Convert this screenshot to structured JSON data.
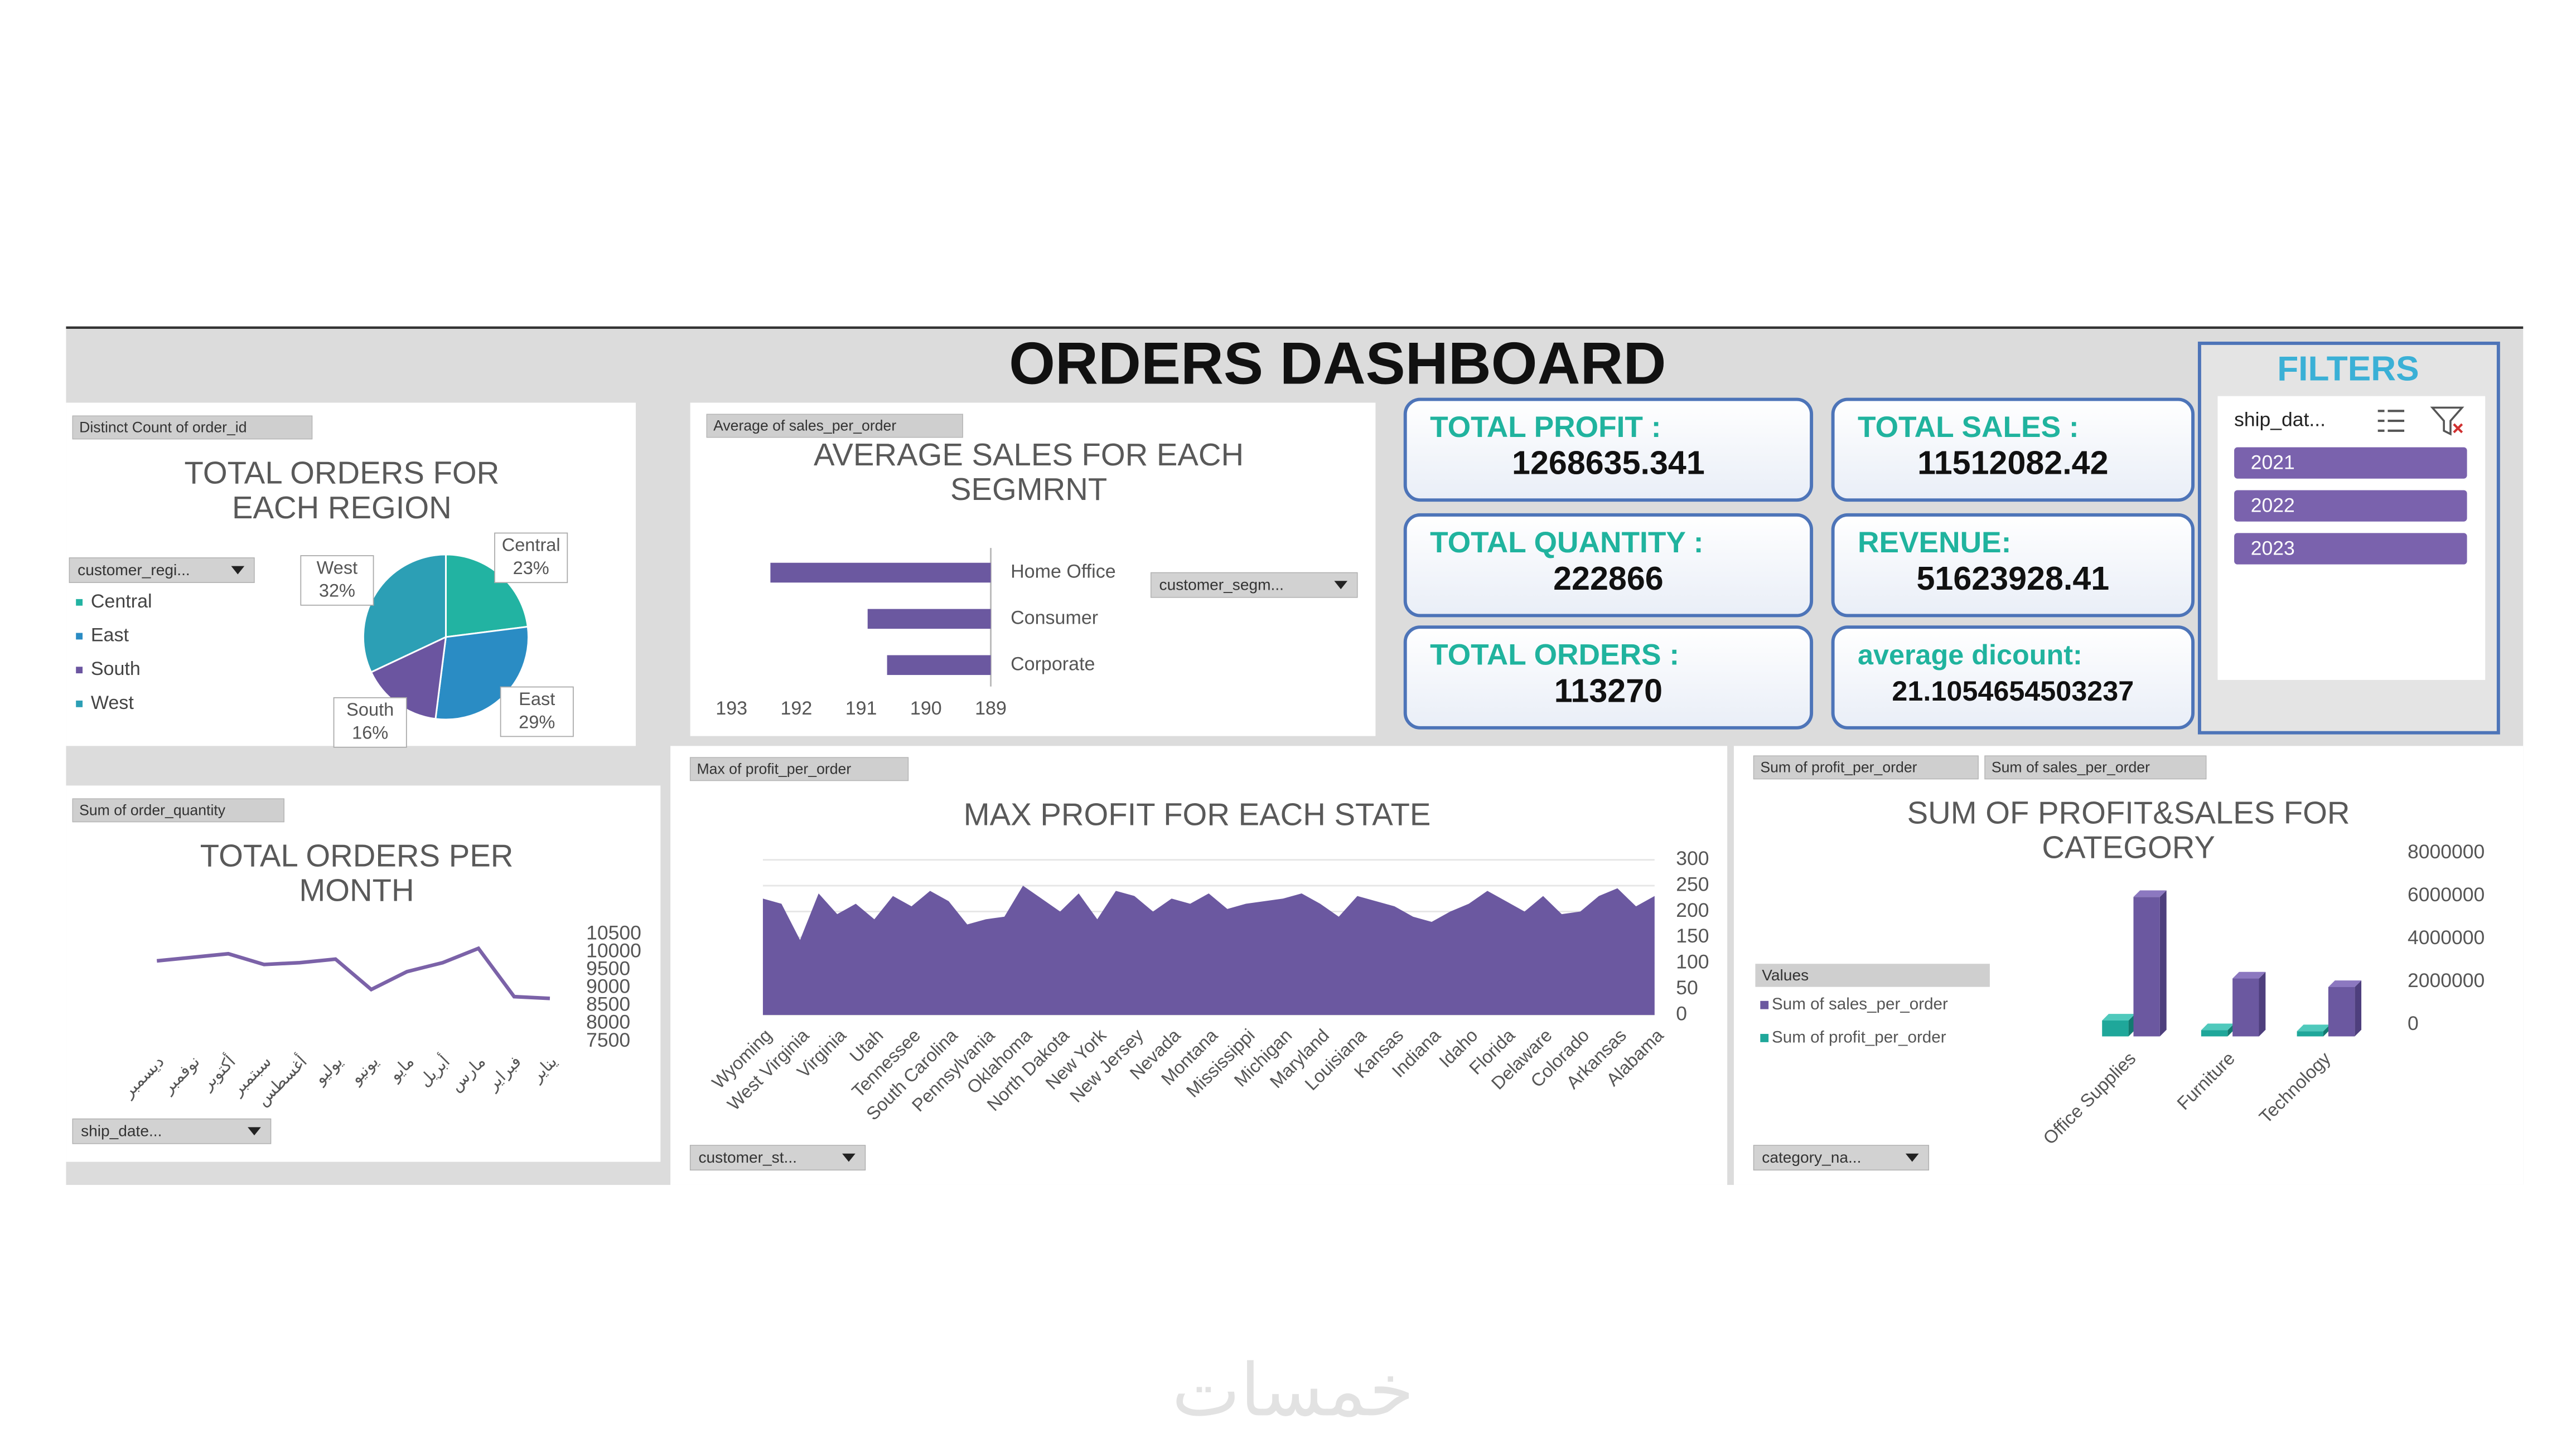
{
  "title": "ORDERS DASHBOARD",
  "kpis": [
    {
      "label": "TOTAL PROFIT :",
      "value": "1268635.341"
    },
    {
      "label": "TOTAL SALES :",
      "value": "11512082.42"
    },
    {
      "label": "TOTAL QUANTITY :",
      "value": "222866"
    },
    {
      "label": "REVENUE:",
      "value": "51623928.41"
    },
    {
      "label": "TOTAL ORDERS :",
      "value": "113270"
    },
    {
      "label": "average dicount:",
      "value": "21.1054654503237"
    }
  ],
  "filters": {
    "title": "FILTERS",
    "field": "ship_dat...",
    "items": [
      "2021",
      "2022",
      "2023"
    ]
  },
  "watermark": "خمسات",
  "chart_data": [
    {
      "type": "pie",
      "title": "TOTAL ORDERS FOR EACH REGION",
      "field_buttons": [
        "Distinct Count of order_id"
      ],
      "filter": "customer_regi...",
      "categories": [
        "Central",
        "East",
        "South",
        "West"
      ],
      "values": [
        23,
        29,
        16,
        32
      ],
      "value_labels": [
        "23%",
        "29%",
        "16%",
        "32%"
      ],
      "colors": [
        "#22b3a2",
        "#2a8cc4",
        "#6b55a0",
        "#2c9fb5"
      ],
      "legend": "left"
    },
    {
      "type": "hbar",
      "title": "AVERAGE SALES FOR EACH SEGMRNT",
      "field_buttons": [
        "Average of sales_per_order"
      ],
      "filter": "customer_segm...",
      "categories": [
        "Home Office",
        "Consumer",
        "Corporate"
      ],
      "values": [
        192.4,
        190.9,
        190.6
      ],
      "color": "#6b58a0",
      "xlim": [
        189,
        193
      ],
      "x_reversed": true,
      "xticks": [
        193,
        192,
        191,
        190,
        189
      ]
    },
    {
      "type": "line",
      "title": "TOTAL ORDERS PER MONTH",
      "field_buttons": [
        "Sum of order_quantity"
      ],
      "filter": "ship_date...",
      "categories": [
        "ديسمبر",
        "نوفمبر",
        "أكتوبر",
        "سبتمبر",
        "أغسطس",
        "يوليو",
        "يونيو",
        "مايو",
        "أبريل",
        "مارس",
        "فبراير",
        "يناير"
      ],
      "values": [
        9750,
        9850,
        9950,
        9650,
        9700,
        9800,
        8950,
        9450,
        9700,
        10100,
        8750,
        8700
      ],
      "color": "#7b62a8",
      "ylim": [
        7500,
        10500
      ],
      "yticks": [
        7500,
        8000,
        8500,
        9000,
        9500,
        10000,
        10500
      ]
    },
    {
      "type": "area",
      "title": "MAX PROFIT FOR EACH STATE",
      "field_buttons": [
        "Max of profit_per_order"
      ],
      "filter": "customer_st...",
      "categories": [
        "Wyoming",
        null,
        "West Virginia",
        null,
        "Virginia",
        null,
        "Utah",
        null,
        "Tennessee",
        null,
        "South Carolina",
        null,
        "Pennsylvania",
        null,
        "Oklahoma",
        null,
        "North Dakota",
        null,
        "New York",
        null,
        "New Jersey",
        null,
        "Nevada",
        null,
        "Montana",
        null,
        "Mississippi",
        null,
        "Michigan",
        null,
        "Maryland",
        null,
        "Louisiana",
        null,
        "Kansas",
        null,
        "Indiana",
        null,
        "Idaho",
        null,
        "Florida",
        null,
        "Delaware",
        null,
        "Colorado",
        null,
        "Arkansas",
        null,
        "Alabama"
      ],
      "values": [
        225,
        215,
        145,
        235,
        195,
        215,
        185,
        230,
        210,
        240,
        220,
        175,
        185,
        190,
        250,
        225,
        200,
        235,
        185,
        240,
        230,
        200,
        225,
        215,
        235,
        205,
        215,
        220,
        225,
        235,
        215,
        190,
        230,
        220,
        210,
        190,
        180,
        200,
        215,
        240,
        220,
        200,
        230,
        195,
        200,
        230,
        245,
        210,
        230
      ],
      "color": "#6b58a0",
      "ylim": [
        0,
        300
      ],
      "yticks": [
        0,
        50,
        100,
        150,
        200,
        250,
        300
      ],
      "grid": true
    },
    {
      "type": "column3d",
      "title": "SUM OF PROFIT&SALES FOR CATEGORY",
      "field_buttons": [
        "Sum of profit_per_order",
        "Sum of sales_per_order"
      ],
      "filter": "category_na...",
      "legend_title": "Values",
      "categories": [
        "Office Supplies",
        "Furniture",
        "Technology"
      ],
      "series": [
        {
          "name": "Sum of sales_per_order",
          "color": "#6b58a0",
          "values": [
            6500000,
            2700000,
            2300000
          ]
        },
        {
          "name": "Sum of profit_per_order",
          "color": "#1fa79a",
          "values": [
            740000,
            290000,
            240000
          ]
        }
      ],
      "ylim": [
        0,
        8000000
      ],
      "yticks": [
        0,
        2000000,
        4000000,
        6000000,
        8000000
      ]
    }
  ]
}
